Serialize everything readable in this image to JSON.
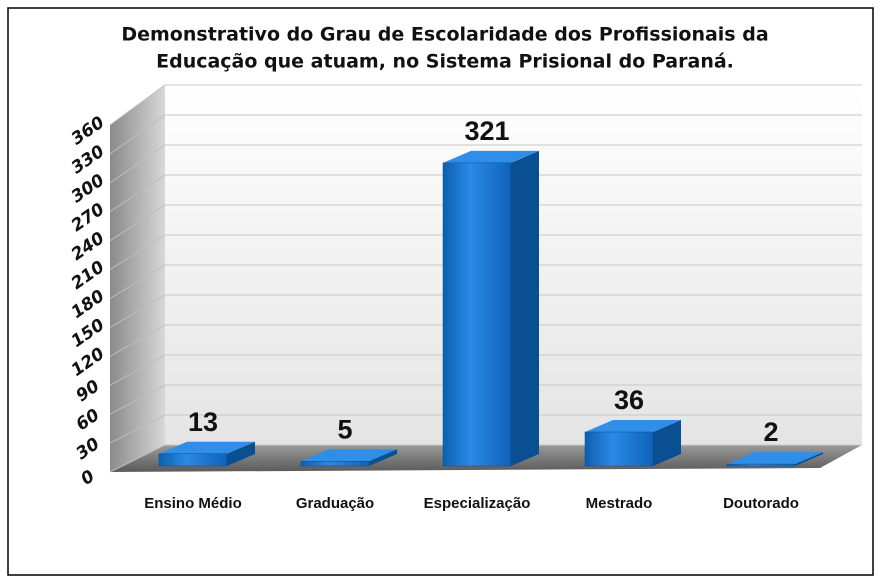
{
  "chart_data": {
    "type": "bar3d",
    "title": [
      "Demonstrativo do Grau de Escolaridade dos Profissionais da",
      "Educação que atuam, no Sistema Prisional do Paraná."
    ],
    "categories": [
      "Ensino Médio",
      "Graduação",
      "Especialização",
      "Mestrado",
      "Doutorado"
    ],
    "values": [
      13,
      5,
      321,
      36,
      2
    ],
    "color": "#1477d0",
    "ylim": [
      0,
      360
    ],
    "yticks": [
      0,
      30,
      60,
      90,
      120,
      150,
      180,
      210,
      240,
      270,
      300,
      330,
      360
    ],
    "grid": true
  }
}
